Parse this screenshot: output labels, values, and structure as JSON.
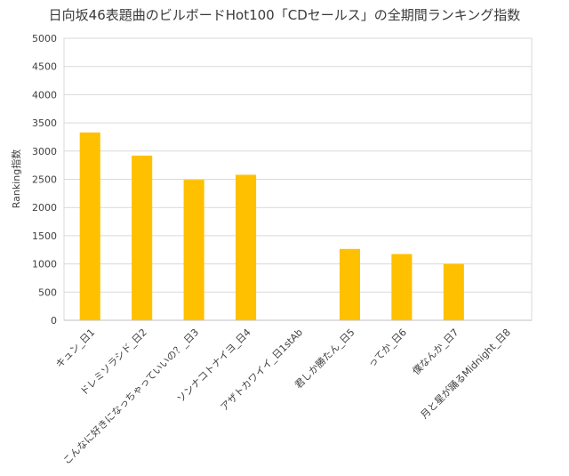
{
  "chart_data": {
    "type": "bar",
    "title": "日向坂46表題曲のビルボードHot100「CDセールス」の全期間ランキング指数",
    "ylabel": "Ranking指数",
    "xlabel": "",
    "ylim": [
      0,
      5000
    ],
    "yticks": [
      0,
      500,
      1000,
      1500,
      2000,
      2500,
      3000,
      3500,
      4000,
      4500,
      5000
    ],
    "grid": true,
    "legend": "none",
    "bar_color": "#FFC000",
    "categories": [
      "キュン_日1",
      "ドレミソラシド_日2",
      "こんなに好きになっちゃっていいの？_日3",
      "ソンナコトナイヨ_日4",
      "アザトカワイイ_日1stAb",
      "君しか勝たん_日5",
      "ってか_日6",
      "僕なんか_日7",
      "月と星が踊るMidnight_日8"
    ],
    "values": [
      3330,
      2920,
      2490,
      2580,
      0,
      1265,
      1175,
      1000,
      0
    ]
  }
}
